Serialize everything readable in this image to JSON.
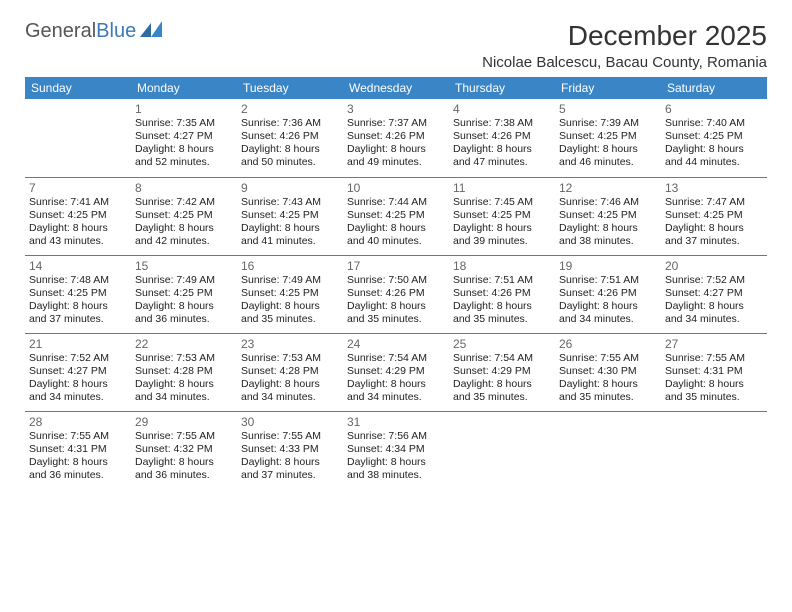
{
  "logo": {
    "text1": "General",
    "text2": "Blue"
  },
  "title": "December 2025",
  "location": "Nicolae Balcescu, Bacau County, Romania",
  "colors": {
    "header_bg": "#3a85c6",
    "header_fg": "#ffffff",
    "rule": "#3a85c6",
    "text": "#222222",
    "daynum": "#666666",
    "logo_gray": "#555555",
    "logo_blue": "#3a7ab8"
  },
  "days_of_week": [
    "Sunday",
    "Monday",
    "Tuesday",
    "Wednesday",
    "Thursday",
    "Friday",
    "Saturday"
  ],
  "weeks": [
    [
      null,
      {
        "n": "1",
        "sr": "7:35 AM",
        "ss": "4:27 PM",
        "dl": "8 hours and 52 minutes."
      },
      {
        "n": "2",
        "sr": "7:36 AM",
        "ss": "4:26 PM",
        "dl": "8 hours and 50 minutes."
      },
      {
        "n": "3",
        "sr": "7:37 AM",
        "ss": "4:26 PM",
        "dl": "8 hours and 49 minutes."
      },
      {
        "n": "4",
        "sr": "7:38 AM",
        "ss": "4:26 PM",
        "dl": "8 hours and 47 minutes."
      },
      {
        "n": "5",
        "sr": "7:39 AM",
        "ss": "4:25 PM",
        "dl": "8 hours and 46 minutes."
      },
      {
        "n": "6",
        "sr": "7:40 AM",
        "ss": "4:25 PM",
        "dl": "8 hours and 44 minutes."
      }
    ],
    [
      {
        "n": "7",
        "sr": "7:41 AM",
        "ss": "4:25 PM",
        "dl": "8 hours and 43 minutes."
      },
      {
        "n": "8",
        "sr": "7:42 AM",
        "ss": "4:25 PM",
        "dl": "8 hours and 42 minutes."
      },
      {
        "n": "9",
        "sr": "7:43 AM",
        "ss": "4:25 PM",
        "dl": "8 hours and 41 minutes."
      },
      {
        "n": "10",
        "sr": "7:44 AM",
        "ss": "4:25 PM",
        "dl": "8 hours and 40 minutes."
      },
      {
        "n": "11",
        "sr": "7:45 AM",
        "ss": "4:25 PM",
        "dl": "8 hours and 39 minutes."
      },
      {
        "n": "12",
        "sr": "7:46 AM",
        "ss": "4:25 PM",
        "dl": "8 hours and 38 minutes."
      },
      {
        "n": "13",
        "sr": "7:47 AM",
        "ss": "4:25 PM",
        "dl": "8 hours and 37 minutes."
      }
    ],
    [
      {
        "n": "14",
        "sr": "7:48 AM",
        "ss": "4:25 PM",
        "dl": "8 hours and 37 minutes."
      },
      {
        "n": "15",
        "sr": "7:49 AM",
        "ss": "4:25 PM",
        "dl": "8 hours and 36 minutes."
      },
      {
        "n": "16",
        "sr": "7:49 AM",
        "ss": "4:25 PM",
        "dl": "8 hours and 35 minutes."
      },
      {
        "n": "17",
        "sr": "7:50 AM",
        "ss": "4:26 PM",
        "dl": "8 hours and 35 minutes."
      },
      {
        "n": "18",
        "sr": "7:51 AM",
        "ss": "4:26 PM",
        "dl": "8 hours and 35 minutes."
      },
      {
        "n": "19",
        "sr": "7:51 AM",
        "ss": "4:26 PM",
        "dl": "8 hours and 34 minutes."
      },
      {
        "n": "20",
        "sr": "7:52 AM",
        "ss": "4:27 PM",
        "dl": "8 hours and 34 minutes."
      }
    ],
    [
      {
        "n": "21",
        "sr": "7:52 AM",
        "ss": "4:27 PM",
        "dl": "8 hours and 34 minutes."
      },
      {
        "n": "22",
        "sr": "7:53 AM",
        "ss": "4:28 PM",
        "dl": "8 hours and 34 minutes."
      },
      {
        "n": "23",
        "sr": "7:53 AM",
        "ss": "4:28 PM",
        "dl": "8 hours and 34 minutes."
      },
      {
        "n": "24",
        "sr": "7:54 AM",
        "ss": "4:29 PM",
        "dl": "8 hours and 34 minutes."
      },
      {
        "n": "25",
        "sr": "7:54 AM",
        "ss": "4:29 PM",
        "dl": "8 hours and 35 minutes."
      },
      {
        "n": "26",
        "sr": "7:55 AM",
        "ss": "4:30 PM",
        "dl": "8 hours and 35 minutes."
      },
      {
        "n": "27",
        "sr": "7:55 AM",
        "ss": "4:31 PM",
        "dl": "8 hours and 35 minutes."
      }
    ],
    [
      {
        "n": "28",
        "sr": "7:55 AM",
        "ss": "4:31 PM",
        "dl": "8 hours and 36 minutes."
      },
      {
        "n": "29",
        "sr": "7:55 AM",
        "ss": "4:32 PM",
        "dl": "8 hours and 36 minutes."
      },
      {
        "n": "30",
        "sr": "7:55 AM",
        "ss": "4:33 PM",
        "dl": "8 hours and 37 minutes."
      },
      {
        "n": "31",
        "sr": "7:56 AM",
        "ss": "4:34 PM",
        "dl": "8 hours and 38 minutes."
      },
      null,
      null,
      null
    ]
  ],
  "labels": {
    "sunrise": "Sunrise:",
    "sunset": "Sunset:",
    "daylight": "Daylight:"
  }
}
